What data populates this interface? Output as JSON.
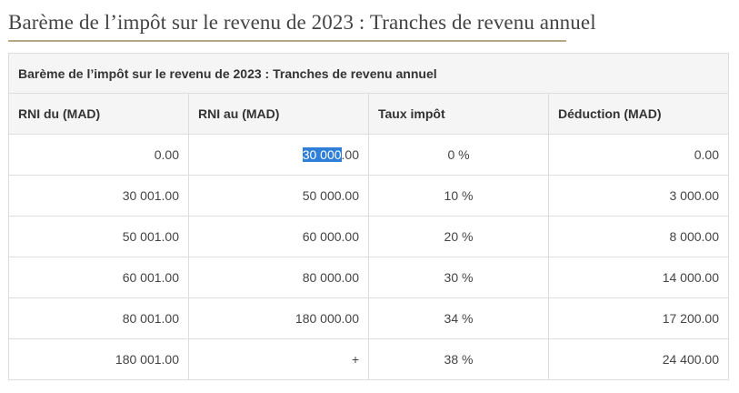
{
  "page": {
    "title": "Barème de l’impôt sur le revenu de 2023 : Tranches de revenu annuel"
  },
  "table": {
    "caption": "Barème de l’impôt sur le revenu de 2023 : Tranches de revenu annuel",
    "headers": [
      "RNI du (MAD)",
      "RNI au (MAD)",
      "Taux impôt",
      "Déduction (MAD)"
    ],
    "rows": [
      {
        "from": "0.00",
        "to_selected": "30 000",
        "to_rest": ".00",
        "rate": "0 %",
        "deduction": "0.00"
      },
      {
        "from": "30 001.00",
        "to": "50 000.00",
        "rate": "10 %",
        "deduction": "3 000.00"
      },
      {
        "from": "50 001.00",
        "to": "60 000.00",
        "rate": "20 %",
        "deduction": "8 000.00"
      },
      {
        "from": "60 001.00",
        "to": "80 000.00",
        "rate": "30 %",
        "deduction": "14 000.00"
      },
      {
        "from": "80 001.00",
        "to": "180 000.00",
        "rate": "34 %",
        "deduction": "17 200.00"
      },
      {
        "from": "180 001.00",
        "to": "+",
        "rate": "38 %",
        "deduction": "24 400.00"
      }
    ]
  },
  "colors": {
    "selection": "#2f7fd8",
    "title_underline": "#b8a687",
    "header_background": "#f5f5f5",
    "border": "#dddddd"
  }
}
